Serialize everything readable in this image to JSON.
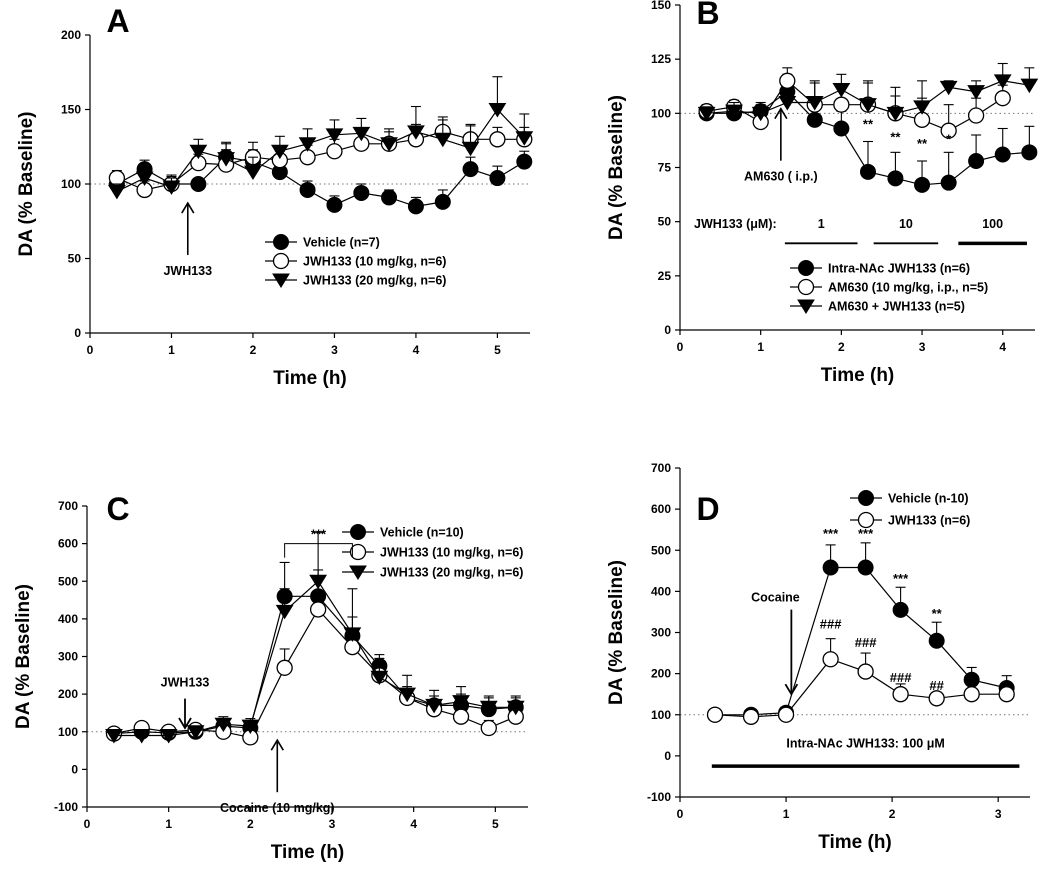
{
  "chart_data": [
    {
      "type": "line",
      "panel": "A",
      "xlabel": "Time (h)",
      "ylabel": "DA (% Baseline)",
      "xlim": [
        0,
        5.4
      ],
      "ylim": [
        0,
        200
      ],
      "xticks": [
        0,
        1,
        2,
        3,
        4,
        5
      ],
      "xtick_labels": [
        "0",
        "1",
        "2",
        "3",
        "4",
        "5"
      ],
      "yticks": [
        0,
        50,
        100,
        150,
        200
      ],
      "ytick_labels": [
        "0",
        "50",
        "100",
        "150",
        "200"
      ],
      "baseline": 100,
      "legend": "lower-right",
      "series": [
        {
          "name": "Vehicle (n=7)",
          "marker": "filled-circle",
          "x": [
            0.33,
            0.67,
            1.0,
            1.33,
            1.67,
            2.0,
            2.33,
            2.67,
            3.0,
            3.33,
            3.67,
            4.0,
            4.33,
            4.67,
            5.0,
            5.33
          ],
          "y": [
            100,
            110,
            100,
            100,
            118,
            115,
            108,
            96,
            86,
            94,
            91,
            85,
            88,
            110,
            104,
            115
          ],
          "err": [
            5,
            6,
            5,
            0,
            10,
            8,
            8,
            6,
            6,
            6,
            5,
            6,
            8,
            8,
            8,
            7
          ]
        },
        {
          "name": "JWH133 (10 mg/kg, n=6)",
          "marker": "open-circle",
          "x": [
            0.33,
            0.67,
            1.0,
            1.33,
            1.67,
            2.0,
            2.33,
            2.67,
            3.0,
            3.33,
            3.67,
            4.0,
            4.33,
            4.67,
            5.0,
            5.33
          ],
          "y": [
            104,
            96,
            100,
            114,
            113,
            118,
            116,
            118,
            122,
            127,
            127,
            130,
            135,
            130,
            130,
            130
          ],
          "err": [
            5,
            6,
            6,
            6,
            10,
            10,
            6,
            8,
            8,
            8,
            8,
            10,
            8,
            10,
            8,
            8
          ]
        },
        {
          "name": "JWH133 (20 mg/kg, n=6)",
          "marker": "filled-triangle-down",
          "x": [
            0.33,
            0.67,
            1.0,
            1.33,
            1.67,
            2.0,
            2.33,
            2.67,
            3.0,
            3.33,
            3.67,
            4.0,
            4.33,
            4.67,
            5.0,
            5.33
          ],
          "y": [
            95,
            104,
            98,
            122,
            117,
            108,
            122,
            127,
            133,
            134,
            127,
            135,
            130,
            124,
            150,
            131
          ],
          "err": [
            5,
            8,
            6,
            8,
            10,
            10,
            10,
            10,
            10,
            10,
            10,
            17,
            15,
            15,
            22,
            16
          ]
        }
      ],
      "annotations": [
        {
          "text": "JWH133",
          "x": 1.2,
          "y": 55,
          "arrow": "up"
        }
      ]
    },
    {
      "type": "line",
      "panel": "B",
      "xlabel": "Time (h)",
      "ylabel": "DA (% Baseline)",
      "xlim": [
        0,
        4.4
      ],
      "ylim": [
        0,
        150
      ],
      "xticks": [
        0,
        1,
        2,
        3,
        4
      ],
      "xtick_labels": [
        "0",
        "1",
        "2",
        "3",
        "4"
      ],
      "yticks": [
        0,
        25,
        50,
        75,
        100,
        125,
        150
      ],
      "ytick_labels": [
        "0",
        "25",
        "50",
        "75",
        "100",
        "125",
        "150"
      ],
      "baseline": 100,
      "legend": "lower-right",
      "series": [
        {
          "name": "Intra-NAc JWH133 (n=6)",
          "marker": "filled-circle",
          "x": [
            0.33,
            0.67,
            1.0,
            1.33,
            1.67,
            2.0,
            2.33,
            2.67,
            3.0,
            3.33,
            3.67,
            4.0,
            4.33
          ],
          "y": [
            100,
            100,
            101,
            110,
            97,
            93,
            73,
            70,
            67,
            68,
            78,
            81,
            82
          ],
          "err": [
            3,
            3,
            4,
            8,
            8,
            8,
            14,
            12,
            11,
            14,
            12,
            12,
            12
          ]
        },
        {
          "name": "AM630 (10 mg/kg, i.p., n=5)",
          "marker": "open-circle",
          "x": [
            0.33,
            0.67,
            1.0,
            1.33,
            1.67,
            2.0,
            2.33,
            2.67,
            3.0,
            3.33,
            3.67,
            4.0
          ],
          "y": [
            101,
            103,
            96,
            115,
            104,
            104,
            104,
            100,
            97,
            92,
            99,
            107
          ],
          "err": [
            3,
            3,
            3,
            6,
            10,
            9,
            11,
            8,
            10,
            12,
            8,
            6
          ]
        },
        {
          "name": "AM630 + JWH133 (n=5)",
          "marker": "filled-triangle-down",
          "x": [
            0.33,
            0.67,
            1.0,
            1.33,
            1.67,
            2.0,
            2.33,
            2.67,
            3.0,
            3.33,
            3.67,
            4.0,
            4.33
          ],
          "y": [
            100,
            101,
            100,
            105,
            105,
            111,
            104,
            100,
            103,
            112,
            110,
            115,
            113
          ],
          "err": [
            3,
            4,
            4,
            6,
            10,
            7,
            10,
            12,
            12,
            3,
            5,
            8,
            8
          ]
        }
      ],
      "significance": [
        {
          "text": "**",
          "x": 2.33,
          "y": 93
        },
        {
          "text": "**",
          "x": 2.67,
          "y": 87
        },
        {
          "text": "**",
          "x": 3.0,
          "y": 84
        },
        {
          "text": "*",
          "x": 3.33,
          "y": 86
        }
      ],
      "annotations": [
        {
          "text": "AM630 ( i.p.)",
          "x": 1.25,
          "y": 80,
          "arrow": "up"
        }
      ],
      "dose_bars": {
        "label": "JWH133 (μM):",
        "segments": [
          {
            "label": "1",
            "x0": 1.3,
            "x1": 2.2
          },
          {
            "label": "10",
            "x0": 2.4,
            "x1": 3.2
          },
          {
            "label": "100",
            "x0": 3.45,
            "x1": 4.3
          }
        ]
      }
    },
    {
      "type": "line",
      "panel": "C",
      "xlabel": "Time (h)",
      "ylabel": "DA (% Baseline)",
      "xlim": [
        0,
        5.4
      ],
      "ylim": [
        -100,
        700
      ],
      "xticks": [
        0,
        1,
        2,
        3,
        4,
        5
      ],
      "xtick_labels": [
        "0",
        "1",
        "2",
        "3",
        "4",
        "5"
      ],
      "yticks": [
        -100,
        0,
        100,
        200,
        300,
        400,
        500,
        600,
        700
      ],
      "ytick_labels": [
        "-100",
        "0",
        "100",
        "200",
        "300",
        "400",
        "500",
        "600",
        "700"
      ],
      "baseline": 100,
      "legend": "top-right",
      "series": [
        {
          "name": "Vehicle (n=10)",
          "marker": "filled-circle",
          "x": [
            0.33,
            0.67,
            1.0,
            1.33,
            1.67,
            2.0,
            2.42,
            2.83,
            3.25,
            3.58,
            3.92,
            4.25,
            4.58,
            4.92,
            5.25
          ],
          "y": [
            95,
            100,
            97,
            100,
            115,
            110,
            460,
            460,
            355,
            275,
            190,
            170,
            170,
            160,
            165
          ],
          "err": [
            10,
            10,
            10,
            10,
            20,
            20,
            90,
            70,
            50,
            30,
            30,
            25,
            30,
            30,
            30
          ]
        },
        {
          "name": "JWH133 (10 mg/kg, n=6)",
          "marker": "open-circle",
          "x": [
            0.33,
            0.67,
            1.0,
            1.33,
            1.67,
            2.0,
            2.42,
            2.83,
            3.25,
            3.58,
            3.92,
            4.25,
            4.58,
            4.92,
            5.25
          ],
          "y": [
            95,
            110,
            100,
            105,
            100,
            85,
            270,
            425,
            325,
            250,
            190,
            160,
            140,
            110,
            140
          ],
          "err": [
            10,
            10,
            10,
            10,
            15,
            10,
            50,
            40,
            30,
            30,
            20,
            20,
            20,
            20,
            20
          ]
        },
        {
          "name": "JWH133 (20 mg/kg, n=6)",
          "marker": "filled-triangle-down",
          "x": [
            0.33,
            0.67,
            1.0,
            1.33,
            1.67,
            2.0,
            2.42,
            2.83,
            3.25,
            3.58,
            3.92,
            4.25,
            4.58,
            4.92,
            5.25
          ],
          "y": [
            90,
            90,
            90,
            100,
            120,
            115,
            420,
            500,
            360,
            245,
            200,
            170,
            180,
            165,
            165
          ],
          "err": [
            10,
            10,
            10,
            10,
            20,
            20,
            60,
            130,
            120,
            50,
            50,
            40,
            40,
            30,
            25
          ]
        }
      ],
      "significance": [
        {
          "text": "***",
          "x0": 2.42,
          "x1": 3.25,
          "y": 600
        }
      ],
      "annotations": [
        {
          "text": "JWH133",
          "x": 1.2,
          "y": 220,
          "arrow": "down"
        },
        {
          "text": "Cocaine (10 mg/kg)",
          "x": 2.33,
          "y": -50,
          "arrow": "up"
        }
      ]
    },
    {
      "type": "line",
      "panel": "D",
      "xlabel": "Time (h)",
      "ylabel": "DA (% Baseline)",
      "xlim": [
        0,
        3.3
      ],
      "ylim": [
        -100,
        700
      ],
      "xticks": [
        0,
        1,
        2,
        3
      ],
      "xtick_labels": [
        "0",
        "1",
        "2",
        "3"
      ],
      "yticks": [
        -100,
        0,
        100,
        200,
        300,
        400,
        500,
        600,
        700
      ],
      "ytick_labels": [
        "-100",
        "0",
        "100",
        "200",
        "300",
        "400",
        "500",
        "600",
        "700"
      ],
      "baseline": 100,
      "legend": "top-center",
      "series": [
        {
          "name": "Vehicle (n-10)",
          "marker": "filled-circle",
          "x": [
            0.33,
            0.67,
            1.0,
            1.42,
            1.75,
            2.08,
            2.42,
            2.75,
            3.08
          ],
          "y": [
            100,
            100,
            105,
            458,
            458,
            355,
            280,
            185,
            165
          ],
          "err": [
            5,
            8,
            10,
            55,
            60,
            55,
            45,
            30,
            30
          ]
        },
        {
          "name": "JWH133 (n=6)",
          "marker": "open-circle",
          "x": [
            0.33,
            0.67,
            1.0,
            1.42,
            1.75,
            2.08,
            2.42,
            2.75,
            3.08
          ],
          "y": [
            100,
            95,
            100,
            235,
            205,
            150,
            140,
            150,
            150
          ],
          "err": [
            5,
            5,
            8,
            50,
            45,
            25,
            10,
            10,
            10
          ]
        }
      ],
      "significance": [
        {
          "text": "***",
          "x": 1.42,
          "y": 530
        },
        {
          "text": "***",
          "x": 1.75,
          "y": 530
        },
        {
          "text": "***",
          "x": 2.08,
          "y": 420
        },
        {
          "text": "**",
          "x": 2.42,
          "y": 335
        },
        {
          "text": "###",
          "x": 1.42,
          "y": 310
        },
        {
          "text": "###",
          "x": 1.75,
          "y": 265
        },
        {
          "text": "###",
          "x": 2.08,
          "y": 180
        },
        {
          "text": "##",
          "x": 2.42,
          "y": 160
        }
      ],
      "annotations": [
        {
          "text": "Cocaine",
          "x": 0.9,
          "y": 375,
          "arrow": "down"
        },
        {
          "text": "Intra-NAc JWH133: 100 μM",
          "x": 1.75,
          "y": 20,
          "bar_y": -25,
          "bar_x0": 0.3,
          "bar_x1": 3.2
        }
      ]
    }
  ]
}
